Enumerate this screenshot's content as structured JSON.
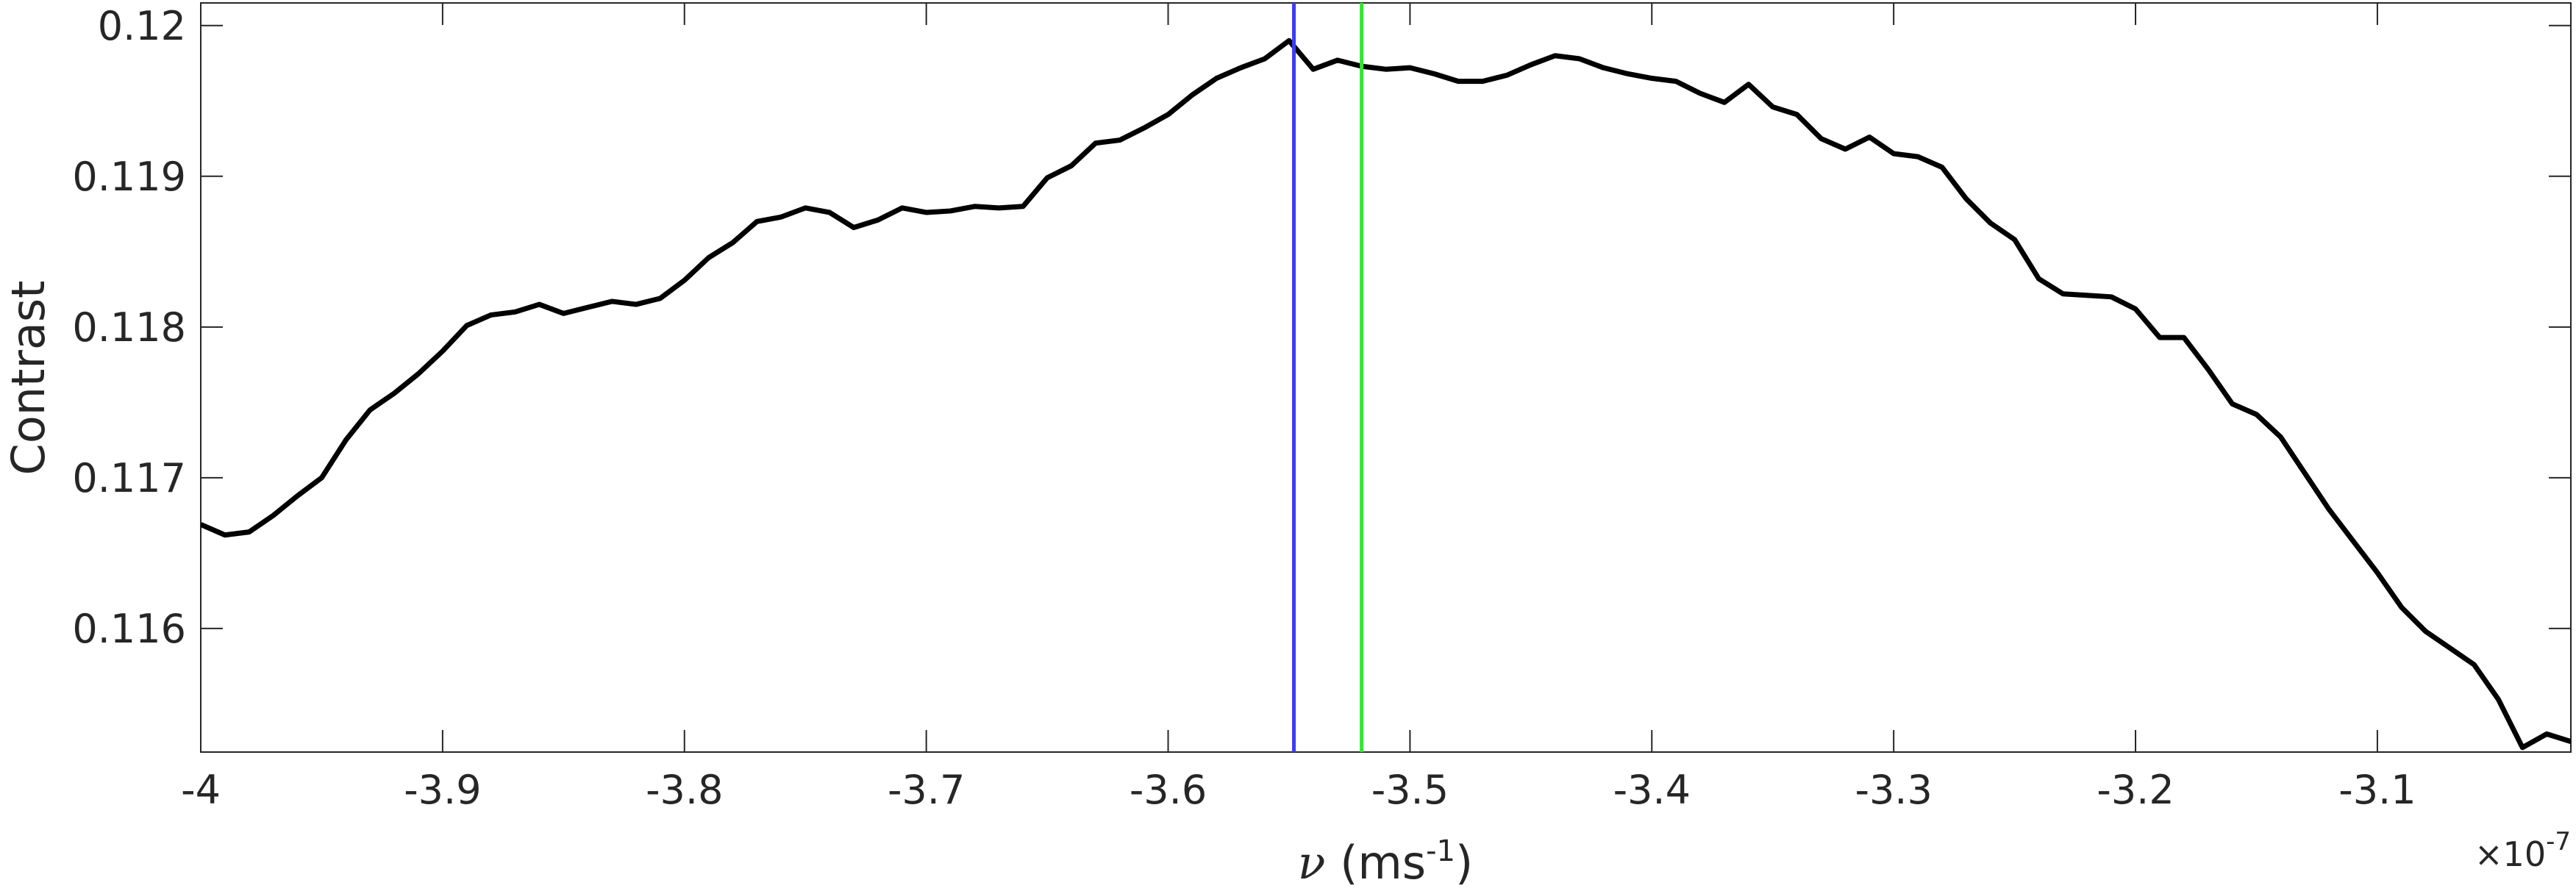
{
  "chart_data": {
    "type": "line",
    "ylabel": "Contrast",
    "xlabel": [
      "ν",
      "(ms",
      "-1",
      ")"
    ],
    "x_multiplier": [
      "×10",
      "-7"
    ],
    "color": "#000000",
    "xlim": [
      -4,
      -3.02
    ],
    "ylim": [
      0.11518,
      0.12015
    ],
    "xticks": [
      -4,
      -3.9,
      -3.8,
      -3.7,
      -3.6,
      -3.5,
      -3.4,
      -3.3,
      -3.2,
      -3.1
    ],
    "yticks": [
      0.116,
      0.117,
      0.118,
      0.119,
      0.12
    ],
    "vlines": [
      {
        "x": -3.548,
        "color": "#3d3df2"
      },
      {
        "x": -3.52,
        "color": "#33e633"
      }
    ],
    "x": [
      -4,
      -3.99,
      -3.98,
      -3.97,
      -3.96,
      -3.95,
      -3.94,
      -3.93,
      -3.92,
      -3.91,
      -3.9,
      -3.89,
      -3.88,
      -3.87,
      -3.86,
      -3.85,
      -3.84,
      -3.83,
      -3.82,
      -3.81,
      -3.8,
      -3.79,
      -3.78,
      -3.77,
      -3.76,
      -3.75,
      -3.74,
      -3.73,
      -3.72,
      -3.71,
      -3.7,
      -3.69,
      -3.68,
      -3.67,
      -3.66,
      -3.65,
      -3.64,
      -3.63,
      -3.62,
      -3.61,
      -3.6,
      -3.59,
      -3.58,
      -3.57,
      -3.56,
      -3.55,
      -3.54,
      -3.53,
      -3.52,
      -3.51,
      -3.5,
      -3.49,
      -3.48,
      -3.47,
      -3.46,
      -3.45,
      -3.44,
      -3.43,
      -3.42,
      -3.41,
      -3.4,
      -3.39,
      -3.38,
      -3.37,
      -3.36,
      -3.35,
      -3.34,
      -3.33,
      -3.32,
      -3.31,
      -3.3,
      -3.29,
      -3.28,
      -3.27,
      -3.26,
      -3.25,
      -3.24,
      -3.23,
      -3.22,
      -3.21,
      -3.2,
      -3.19,
      -3.18,
      -3.17,
      -3.16,
      -3.15,
      -3.14,
      -3.13,
      -3.12,
      -3.11,
      -3.1,
      -3.09,
      -3.08,
      -3.07,
      -3.06,
      -3.05,
      -3.04,
      -3.03,
      -3.02
    ],
    "values": [
      0.11669,
      0.11662,
      0.11664,
      0.11675,
      0.11688,
      0.117,
      0.11725,
      0.11745,
      0.11756,
      0.11769,
      0.11784,
      0.11801,
      0.11808,
      0.1181,
      0.11815,
      0.11809,
      0.11813,
      0.11817,
      0.11815,
      0.11819,
      0.11831,
      0.11846,
      0.11856,
      0.1187,
      0.11873,
      0.11879,
      0.11876,
      0.11866,
      0.11871,
      0.11879,
      0.11876,
      0.11877,
      0.1188,
      0.11879,
      0.1188,
      0.11899,
      0.11907,
      0.11922,
      0.11924,
      0.11932,
      0.11941,
      0.11954,
      0.11965,
      0.11972,
      0.11978,
      0.1199,
      0.11971,
      0.11977,
      0.11973,
      0.11971,
      0.11972,
      0.11968,
      0.11963,
      0.11963,
      0.11967,
      0.11974,
      0.1198,
      0.11978,
      0.11972,
      0.11968,
      0.11965,
      0.11963,
      0.11955,
      0.11949,
      0.11961,
      0.11946,
      0.11941,
      0.11925,
      0.11918,
      0.11926,
      0.11915,
      0.11913,
      0.11906,
      0.11885,
      0.11869,
      0.11858,
      0.11832,
      0.11822,
      0.11821,
      0.1182,
      0.11812,
      0.11793,
      0.11793,
      0.11772,
      0.11749,
      0.11742,
      0.11727,
      0.11703,
      0.11679,
      0.11658,
      0.11637,
      0.11614,
      0.11598,
      0.11587,
      0.11576,
      0.11553,
      0.11521,
      0.1153,
      0.11525
    ]
  }
}
